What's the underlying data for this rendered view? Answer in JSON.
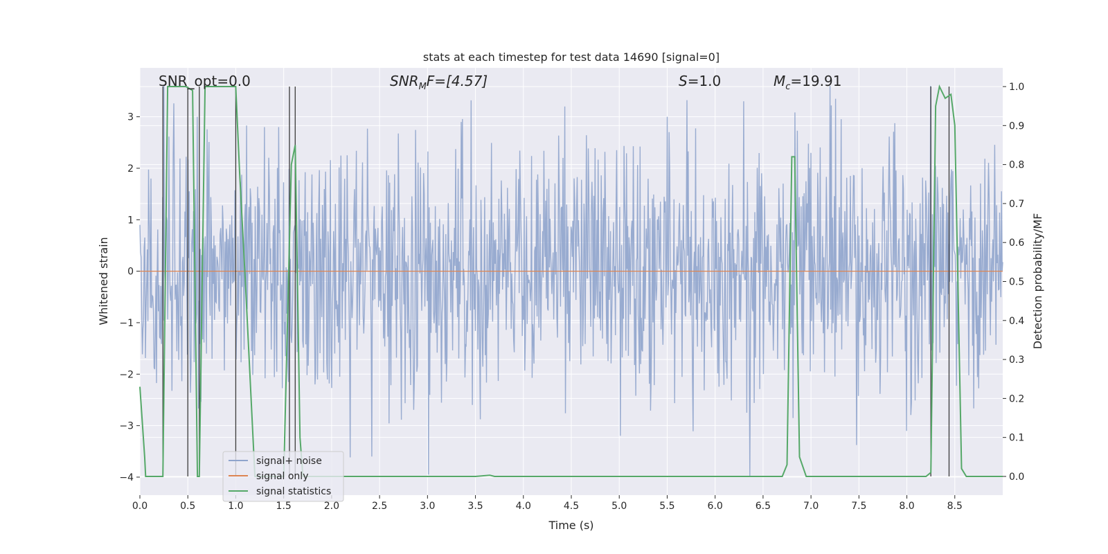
{
  "chart_data": {
    "type": "line",
    "title": "stats at each timestep for test data 14690 [signal=0]",
    "xlabel": "Time (s)",
    "ylabel": "Whitened strain",
    "ylabel_right": "Detection probability/MF",
    "xlim": [
      0.0,
      9.0
    ],
    "ylim": [
      -4.35,
      3.95
    ],
    "ylim_right": [
      -0.048,
      1.048
    ],
    "x_ticks": [
      0.0,
      0.5,
      1.0,
      1.5,
      2.0,
      2.5,
      3.0,
      3.5,
      4.0,
      4.5,
      5.0,
      5.5,
      6.0,
      6.5,
      7.0,
      7.5,
      8.0,
      8.5
    ],
    "x_tick_labels": [
      "0.0",
      "0.5",
      "1.0",
      "1.5",
      "2.0",
      "2.5",
      "3.0",
      "3.5",
      "4.0",
      "4.5",
      "5.0",
      "5.5",
      "6.0",
      "6.5",
      "7.0",
      "7.5",
      "8.0",
      "8.5"
    ],
    "y_ticks": [
      -4,
      -3,
      -2,
      -1,
      0,
      1,
      2,
      3
    ],
    "y_tick_labels": [
      "−4",
      "−3",
      "−2",
      "−1",
      "0",
      "1",
      "2",
      "3"
    ],
    "y2_ticks": [
      0.0,
      0.1,
      0.2,
      0.3,
      0.4,
      0.5,
      0.6,
      0.7,
      0.8,
      0.9,
      1.0
    ],
    "y2_tick_labels": [
      "0.0",
      "0.1",
      "0.2",
      "0.3",
      "0.4",
      "0.5",
      "0.6",
      "0.7",
      "0.8",
      "0.9",
      "1.0"
    ],
    "annotations": {
      "snr_opt": "SNR_opt=0.0",
      "snr_mf_label": "SNR",
      "snr_mf_sub": "M",
      "snr_mf_rest": "F=[4.57]",
      "s_label": "S",
      "s_value": "=1.0",
      "mc_label": "M",
      "mc_sub": "c",
      "mc_value": "=19.91"
    },
    "legend": {
      "position": "lower-left",
      "entries": [
        "signal+ noise",
        "signal only",
        "signal statistics"
      ]
    },
    "colors": {
      "noise": "#8fa4cc",
      "signal": "#dd8452",
      "stats": "#55a868",
      "vlines": "#3a3a3a",
      "background": "#eaeaf2",
      "grid": "#ffffff"
    },
    "series": [
      {
        "name": "signal+ noise",
        "axis": "left",
        "description": "whitened strain noise, approx. Gaussian sigma ~1, range about -4 to 3.7",
        "peak_x": [
          0.25,
          0.6,
          1.3,
          1.45,
          2.42,
          3.35,
          4.43,
          5.5,
          6.3,
          6.36,
          7.2,
          8.25
        ],
        "peak_y": [
          3.6,
          3.0,
          2.8,
          2.8,
          -3.6,
          2.9,
          3.2,
          3.0,
          3.3,
          -4.0,
          3.6,
          3.6
        ]
      },
      {
        "name": "signal only",
        "axis": "left",
        "x": [
          0.0,
          9.0
        ],
        "y": [
          0.0,
          0.0
        ]
      },
      {
        "name": "signal statistics",
        "axis": "right",
        "x": [
          0.0,
          0.05,
          0.06,
          0.2,
          0.24,
          0.29,
          0.4,
          0.48,
          0.55,
          0.6,
          0.62,
          0.68,
          0.8,
          1.0,
          1.04,
          1.1,
          1.2,
          1.5,
          1.58,
          1.62,
          1.67,
          1.7,
          2.0,
          3.0,
          3.5,
          3.65,
          3.7,
          4.0,
          5.0,
          6.0,
          6.7,
          6.75,
          6.8,
          6.83,
          6.88,
          6.95,
          7.0,
          7.5,
          8.0,
          8.2,
          8.25,
          8.3,
          8.34,
          8.4,
          8.46,
          8.5,
          8.57,
          8.62,
          8.7,
          9.0
        ],
        "y": [
          0.23,
          0.05,
          0.0,
          0.0,
          0.0,
          1.0,
          1.0,
          1.0,
          0.99,
          0.0,
          0.0,
          1.0,
          1.0,
          1.0,
          0.78,
          0.5,
          0.0,
          0.0,
          0.8,
          0.85,
          0.1,
          0.0,
          0.0,
          0.0,
          0.0,
          0.003,
          0.0,
          0.0,
          0.0,
          0.0,
          0.0,
          0.03,
          0.82,
          0.82,
          0.05,
          0.0,
          0.0,
          0.0,
          0.0,
          0.0,
          0.01,
          0.95,
          1.0,
          0.97,
          0.98,
          0.9,
          0.02,
          0.0,
          0.0,
          0.0
        ]
      }
    ],
    "vertical_lines_x": [
      0.24,
      0.5,
      0.62,
      1.0,
      1.56,
      1.62,
      8.25,
      8.44
    ]
  }
}
